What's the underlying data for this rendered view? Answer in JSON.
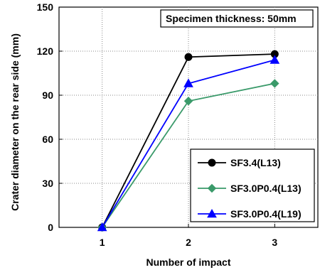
{
  "chart_data": {
    "type": "line",
    "x": [
      1,
      2,
      3
    ],
    "xlabel": "Number of impact",
    "ylabel": "Crater diameter on the rear side (mm)",
    "xlim": [
      0.5,
      3.5
    ],
    "ylim": [
      0,
      150
    ],
    "xticks": [
      1,
      2,
      3
    ],
    "yticks": [
      0,
      30,
      60,
      90,
      120,
      150
    ],
    "grid": "vertical dashed",
    "legend_position": "bottom-right",
    "annotation": "Specimen thickness: 50mm",
    "series": [
      {
        "name": "SF3.4(L13)",
        "values": [
          0,
          116,
          118
        ],
        "color": "#000000",
        "marker": "circle"
      },
      {
        "name": "SF3.0P0.4(L13)",
        "values": [
          0,
          86,
          98
        ],
        "color": "#3a9a6a",
        "marker": "diamond"
      },
      {
        "name": "SF3.0P0.4(L19)",
        "values": [
          0,
          98,
          114
        ],
        "color": "#0000ff",
        "marker": "triangle"
      }
    ]
  }
}
